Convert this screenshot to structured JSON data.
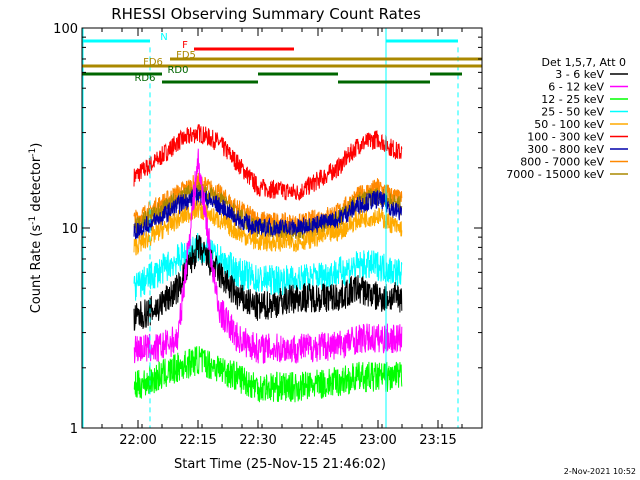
{
  "chart_data": {
    "type": "line",
    "title": "RHESSI Observing Summary Count Rates",
    "xlabel": "Start Time (25-Nov-15 21:46:02)",
    "ylabel": "Count Rate (s⁻¹ detector⁻¹)",
    "yscale": "log",
    "ylim": [
      1,
      100
    ],
    "xlim_minutes": [
      -14,
      86
    ],
    "y_ticks": [
      {
        "value": 1,
        "label": "1"
      },
      {
        "value": 10,
        "label": "10"
      },
      {
        "value": 100,
        "label": "100"
      }
    ],
    "x_ticks": [
      {
        "value": 0,
        "label": "22:00"
      },
      {
        "value": 15,
        "label": "22:15"
      },
      {
        "value": 30,
        "label": "22:30"
      },
      {
        "value": 45,
        "label": "22:45"
      },
      {
        "value": 60,
        "label": "23:00"
      },
      {
        "value": 75,
        "label": "23:15"
      }
    ],
    "legend_title": "Det 1,5,7, Att 0",
    "legend_position": "right",
    "series": [
      {
        "name": "3 - 6 keV",
        "color": "#000000",
        "x": [
          -1,
          5,
          10,
          15,
          20,
          25,
          30,
          40,
          50,
          55,
          60,
          65
        ],
        "y": [
          3.5,
          4,
          5,
          8,
          6,
          4.5,
          4,
          4.5,
          4.5,
          5,
          4.5,
          4.5
        ]
      },
      {
        "name": "6 - 12 keV",
        "color": "#ff00ff",
        "x": [
          -1,
          5,
          10,
          15,
          20,
          25,
          30,
          40,
          50,
          55,
          60,
          65
        ],
        "y": [
          2.5,
          2.5,
          2.8,
          22,
          4,
          2.8,
          2.5,
          2.5,
          2.6,
          2.8,
          2.8,
          2.8
        ]
      },
      {
        "name": "12 - 25 keV",
        "color": "#00ff00",
        "x": [
          -1,
          5,
          10,
          15,
          20,
          25,
          30,
          40,
          50,
          55,
          60,
          65
        ],
        "y": [
          1.6,
          1.8,
          2,
          2.2,
          2,
          1.8,
          1.6,
          1.6,
          1.7,
          1.8,
          1.8,
          1.8
        ]
      },
      {
        "name": "25 - 50 keV",
        "color": "#00ffff",
        "x": [
          -1,
          5,
          10,
          15,
          20,
          25,
          30,
          40,
          50,
          55,
          60,
          65
        ],
        "y": [
          5,
          6,
          7,
          8,
          7,
          6,
          5.5,
          5.5,
          6,
          6.5,
          6.5,
          6
        ]
      },
      {
        "name": "50 - 100 keV",
        "color": "#ffaa00",
        "x": [
          -1,
          5,
          10,
          15,
          20,
          25,
          30,
          40,
          50,
          55,
          60,
          65
        ],
        "y": [
          8,
          9.5,
          11,
          12.5,
          11,
          9.5,
          8.5,
          8.5,
          9.5,
          11,
          11.5,
          10
        ]
      },
      {
        "name": "100 - 300 keV",
        "color": "#ff0000",
        "x": [
          -1,
          5,
          10,
          15,
          20,
          25,
          30,
          40,
          50,
          55,
          60,
          65
        ],
        "y": [
          18,
          22,
          27,
          30,
          27,
          21,
          16,
          15,
          20,
          26,
          28,
          24
        ]
      },
      {
        "name": "300 - 800 keV",
        "color": "#0000aa",
        "x": [
          -1,
          5,
          10,
          15,
          20,
          25,
          30,
          40,
          50,
          55,
          60,
          65
        ],
        "y": [
          9.5,
          11,
          13,
          14.5,
          13,
          11,
          10,
          10,
          11,
          13,
          14,
          12
        ]
      },
      {
        "name": "800 - 7000 keV",
        "color": "#ff8800",
        "x": [
          -1,
          5,
          10,
          15,
          20,
          25,
          30,
          40,
          50,
          55,
          60,
          65
        ],
        "y": [
          11,
          13,
          15,
          17,
          15,
          12.5,
          11,
          10.5,
          12,
          14.5,
          16,
          14
        ]
      },
      {
        "name": "7000 - 15000 keV",
        "color": "#aa8800",
        "x": [
          -1,
          5,
          10,
          15,
          20,
          25,
          30,
          40,
          50,
          55,
          60,
          65
        ],
        "y": [
          10,
          12,
          14,
          15.5,
          14,
          11.5,
          10,
          9.5,
          11,
          13.5,
          14.5,
          13
        ]
      }
    ],
    "flags": [
      {
        "label": "N",
        "color": "#00ffff",
        "segments": [
          [
            -14,
            3
          ],
          [
            62,
            80
          ]
        ]
      },
      {
        "label": "F",
        "color": "#ff0000",
        "segments": [
          [
            14,
            39
          ]
        ]
      },
      {
        "label": "FD5",
        "color": "#aa8800",
        "segments": [
          [
            8,
            86
          ]
        ]
      },
      {
        "label": "FD6",
        "color": "#aa8800",
        "segments": [
          [
            -14,
            86
          ]
        ]
      },
      {
        "label": "RD0",
        "color": "#006600",
        "segments": [
          [
            -14,
            6
          ],
          [
            30,
            50
          ],
          [
            73,
            81
          ]
        ]
      },
      {
        "label": "RD6",
        "color": "#006600",
        "segments": [
          [
            6,
            30
          ],
          [
            50,
            73
          ]
        ]
      }
    ],
    "saa_markers_minutes": [
      3,
      62,
      80
    ],
    "data_interval_minutes": [
      -1,
      66
    ],
    "grid": false
  },
  "footer": {
    "date": "2-Nov-2021 10:52"
  }
}
